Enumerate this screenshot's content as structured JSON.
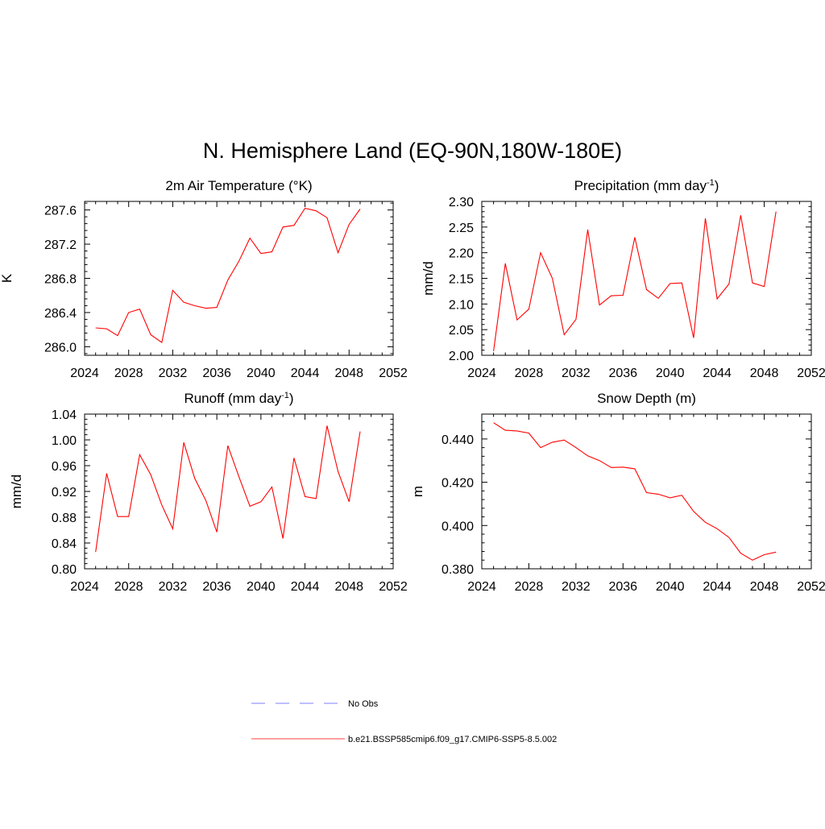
{
  "figure": {
    "title": "N. Hemisphere Land (EQ-90N,180W-180E)"
  },
  "legend": {
    "entries": [
      {
        "label": "No Obs",
        "color": "#9999ff",
        "style": "dashed"
      },
      {
        "label": "b.e21.BSSP585cmip6.f09_g17.CMIP6-SSP5-8.5.002",
        "color": "#ff6666",
        "style": "solid"
      }
    ]
  },
  "chart_data": [
    {
      "type": "line",
      "title": "2m Air Temperature (°K)",
      "ylabel": "K",
      "xlabel": "",
      "xlim": [
        2024,
        2052
      ],
      "ylim": [
        285.9,
        287.7
      ],
      "xticks": [
        2024,
        2028,
        2032,
        2036,
        2040,
        2044,
        2048,
        2052
      ],
      "xtick_labels": [
        "2024",
        "2028",
        "2032",
        "2036",
        "2040",
        "2044",
        "2048",
        "2052"
      ],
      "yticks": [
        286.0,
        286.4,
        286.8,
        287.2,
        287.6
      ],
      "ytick_labels": [
        "286.0",
        "286.4",
        "286.8",
        "287.2",
        "287.6"
      ],
      "line_color": "#ff0000",
      "x": [
        2025,
        2026,
        2027,
        2028,
        2029,
        2030,
        2031,
        2032,
        2033,
        2034,
        2035,
        2036,
        2037,
        2038,
        2039,
        2040,
        2041,
        2042,
        2043,
        2044,
        2045,
        2046,
        2047,
        2048,
        2049
      ],
      "y": [
        286.22,
        286.21,
        286.13,
        286.4,
        286.44,
        286.14,
        286.05,
        286.66,
        286.52,
        286.48,
        286.45,
        286.46,
        286.78,
        287.0,
        287.27,
        287.09,
        287.11,
        287.4,
        287.42,
        287.62,
        287.59,
        287.51,
        287.1,
        287.43,
        287.61
      ]
    },
    {
      "type": "line",
      "title": "Precipitation (mm day",
      "title_sup": "-1",
      "title_end": ")",
      "ylabel": "mm/d",
      "xlabel": "",
      "xlim": [
        2024,
        2052
      ],
      "ylim": [
        2.0,
        2.3
      ],
      "xticks": [
        2024,
        2028,
        2032,
        2036,
        2040,
        2044,
        2048,
        2052
      ],
      "xtick_labels": [
        "2024",
        "2028",
        "2032",
        "2036",
        "2040",
        "2044",
        "2048",
        "2052"
      ],
      "yticks": [
        2.0,
        2.05,
        2.1,
        2.15,
        2.2,
        2.25,
        2.3
      ],
      "ytick_labels": [
        "2.00",
        "2.05",
        "2.10",
        "2.15",
        "2.20",
        "2.25",
        "2.30"
      ],
      "line_color": "#ff0000",
      "x": [
        2025,
        2026,
        2027,
        2028,
        2029,
        2030,
        2031,
        2032,
        2033,
        2034,
        2035,
        2036,
        2037,
        2038,
        2039,
        2040,
        2041,
        2042,
        2043,
        2044,
        2045,
        2046,
        2047,
        2048,
        2049
      ],
      "y": [
        2.008,
        2.179,
        2.069,
        2.09,
        2.2,
        2.15,
        2.04,
        2.07,
        2.245,
        2.098,
        2.116,
        2.117,
        2.23,
        2.128,
        2.111,
        2.14,
        2.141,
        2.034,
        2.267,
        2.11,
        2.139,
        2.273,
        2.141,
        2.134,
        2.28
      ]
    },
    {
      "type": "line",
      "title": "Runoff (mm day",
      "title_sup": "-1",
      "title_end": ")",
      "ylabel": "mm/d",
      "xlabel": "",
      "xlim": [
        2024,
        2052
      ],
      "ylim": [
        0.8,
        1.04
      ],
      "xticks": [
        2024,
        2028,
        2032,
        2036,
        2040,
        2044,
        2048,
        2052
      ],
      "xtick_labels": [
        "2024",
        "2028",
        "2032",
        "2036",
        "2040",
        "2044",
        "2048",
        "2052"
      ],
      "yticks": [
        0.8,
        0.84,
        0.88,
        0.92,
        0.96,
        1.0,
        1.04
      ],
      "ytick_labels": [
        "0.80",
        "0.84",
        "0.88",
        "0.92",
        "0.96",
        "1.00",
        "1.04"
      ],
      "line_color": "#ff0000",
      "x": [
        2025,
        2026,
        2027,
        2028,
        2029,
        2030,
        2031,
        2032,
        2033,
        2034,
        2035,
        2036,
        2037,
        2038,
        2039,
        2040,
        2041,
        2042,
        2043,
        2044,
        2045,
        2046,
        2047,
        2048,
        2049
      ],
      "y": [
        0.826,
        0.948,
        0.881,
        0.881,
        0.977,
        0.946,
        0.899,
        0.862,
        0.996,
        0.94,
        0.906,
        0.857,
        0.991,
        0.943,
        0.897,
        0.904,
        0.927,
        0.847,
        0.972,
        0.912,
        0.909,
        1.022,
        0.951,
        0.904,
        1.013
      ]
    },
    {
      "type": "line",
      "title": "Snow Depth (m)",
      "ylabel": "m",
      "xlabel": "",
      "xlim": [
        2024,
        2052
      ],
      "ylim": [
        0.38,
        0.4515
      ],
      "xticks": [
        2024,
        2028,
        2032,
        2036,
        2040,
        2044,
        2048,
        2052
      ],
      "xtick_labels": [
        "2024",
        "2028",
        "2032",
        "2036",
        "2040",
        "2044",
        "2048",
        "2052"
      ],
      "yticks": [
        0.38,
        0.4,
        0.42,
        0.44
      ],
      "ytick_labels": [
        "0.380",
        "0.400",
        "0.420",
        "0.440"
      ],
      "line_color": "#ff0000",
      "x": [
        2025,
        2026,
        2027,
        2028,
        2029,
        2030,
        2031,
        2032,
        2033,
        2034,
        2035,
        2036,
        2037,
        2038,
        2039,
        2040,
        2041,
        2042,
        2043,
        2044,
        2045,
        2046,
        2047,
        2048,
        2049
      ],
      "y": [
        0.4475,
        0.444,
        0.4437,
        0.4427,
        0.436,
        0.4385,
        0.4395,
        0.436,
        0.4322,
        0.43,
        0.4268,
        0.427,
        0.4262,
        0.4152,
        0.4145,
        0.4128,
        0.414,
        0.4065,
        0.4015,
        0.3985,
        0.3945,
        0.3872,
        0.384,
        0.3865,
        0.3877
      ]
    }
  ]
}
